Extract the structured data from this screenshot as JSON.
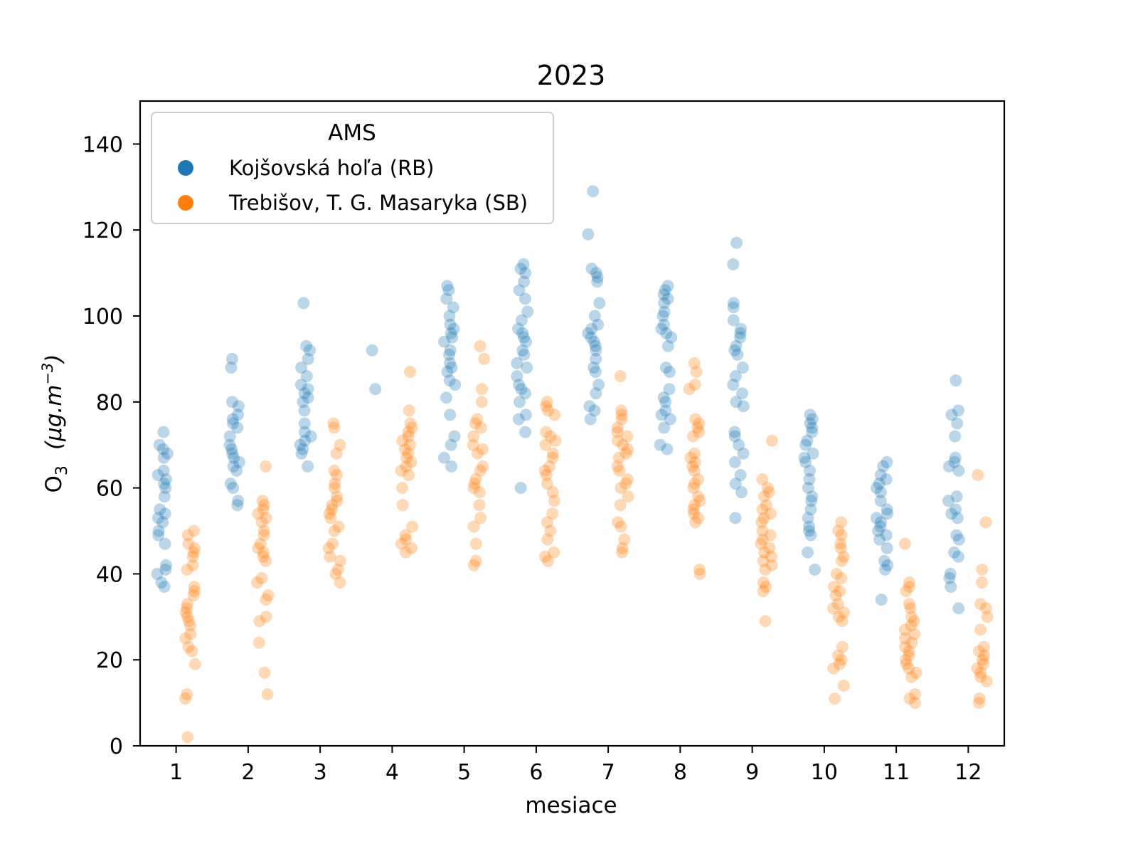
{
  "chart_data": {
    "type": "scatter",
    "title": "2023",
    "xlabel": "mesiace",
    "ylabel": "O",
    "ylabel_sub": "3",
    "ylabel_unit_main": "(μg.m",
    "ylabel_unit_exp": "−3",
    "ylabel_unit_close": ")",
    "x_ticks": [
      "1",
      "2",
      "3",
      "4",
      "5",
      "6",
      "7",
      "8",
      "9",
      "10",
      "11",
      "12"
    ],
    "y_ticks": [
      "0",
      "20",
      "40",
      "60",
      "80",
      "100",
      "120",
      "140"
    ],
    "ylim": [
      0,
      150
    ],
    "grid": false,
    "legend": {
      "title": "AMS",
      "placement": "top-left",
      "entries": [
        "Kojšovská hoľa (RB)",
        "Trebišov, T. G. Masaryka (SB)"
      ]
    },
    "series": [
      {
        "name": "Kojšovská hoľa (RB)",
        "color": "#1f77b4",
        "offset": -0.2,
        "values": [
          [
            73,
            70,
            69,
            68,
            67,
            64,
            63,
            62,
            61,
            60,
            58,
            55,
            54,
            53,
            52,
            50,
            49,
            47,
            42,
            41,
            40,
            38,
            37
          ],
          [
            90,
            88,
            80,
            79,
            77,
            76,
            75,
            74,
            72,
            70,
            69,
            68,
            67,
            66,
            65,
            64,
            61,
            60,
            57,
            56
          ],
          [
            103,
            93,
            92,
            90,
            88,
            86,
            84,
            83,
            82,
            81,
            80,
            78,
            75,
            73,
            72,
            71,
            70,
            69,
            68,
            65
          ],
          [
            92,
            83
          ],
          [
            107,
            106,
            104,
            102,
            100,
            98,
            97,
            96,
            95,
            94,
            92,
            91,
            89,
            88,
            87,
            85,
            84,
            81,
            77,
            72,
            70,
            67,
            65
          ],
          [
            112,
            111,
            110,
            108,
            106,
            104,
            101,
            99,
            97,
            96,
            95,
            94,
            92,
            91,
            89,
            88,
            86,
            84,
            83,
            82,
            80,
            77,
            76,
            73,
            60
          ],
          [
            129,
            119,
            111,
            110,
            109,
            108,
            103,
            100,
            98,
            97,
            96,
            95,
            94,
            93,
            92,
            90,
            88,
            87,
            84,
            82,
            79,
            78,
            76
          ],
          [
            107,
            106,
            105,
            104,
            103,
            101,
            100,
            98,
            97,
            96,
            95,
            93,
            88,
            87,
            83,
            81,
            80,
            78,
            77,
            76,
            74,
            70,
            69
          ],
          [
            117,
            112,
            103,
            102,
            99,
            97,
            96,
            95,
            93,
            92,
            91,
            88,
            86,
            84,
            82,
            80,
            79,
            73,
            72,
            70,
            68,
            66,
            63,
            61,
            59,
            53
          ],
          [
            77,
            76,
            75,
            74,
            73,
            71,
            70,
            68,
            67,
            66,
            64,
            62,
            60,
            58,
            57,
            55,
            53,
            51,
            50,
            49,
            45,
            41
          ],
          [
            66,
            65,
            63,
            62,
            61,
            60,
            59,
            57,
            55,
            54,
            53,
            52,
            51,
            50,
            49,
            48,
            46,
            43,
            42,
            41,
            34
          ],
          [
            85,
            78,
            77,
            75,
            72,
            67,
            66,
            65,
            64,
            58,
            57,
            55,
            54,
            53,
            49,
            48,
            45,
            44,
            40,
            39,
            37,
            32
          ]
        ]
      },
      {
        "name": "Trebišov, T. G. Masaryka (SB)",
        "color": "#ff7f0e",
        "offset": 0.2,
        "values": [
          [
            50,
            49,
            47,
            46,
            45,
            44,
            42,
            41,
            37,
            36,
            35,
            33,
            32,
            31,
            30,
            29,
            28,
            26,
            25,
            23,
            22,
            19,
            12,
            11,
            2
          ],
          [
            65,
            57,
            56,
            55,
            54,
            53,
            52,
            50,
            49,
            47,
            46,
            45,
            44,
            43,
            39,
            38,
            35,
            34,
            30,
            29,
            24,
            17,
            12
          ],
          [
            75,
            74,
            70,
            68,
            64,
            63,
            61,
            60,
            58,
            57,
            56,
            55,
            54,
            53,
            51,
            50,
            47,
            46,
            44,
            43,
            41,
            40,
            38
          ],
          [
            87,
            78,
            75,
            74,
            73,
            72,
            71,
            70,
            69,
            68,
            67,
            66,
            65,
            64,
            63,
            60,
            56,
            51,
            49,
            48,
            47,
            46,
            45
          ],
          [
            93,
            90,
            83,
            80,
            76,
            75,
            74,
            72,
            70,
            69,
            68,
            65,
            64,
            62,
            61,
            60,
            59,
            56,
            53,
            51,
            47,
            43,
            42
          ],
          [
            80,
            79,
            78,
            77,
            73,
            72,
            71,
            70,
            68,
            67,
            65,
            64,
            63,
            61,
            59,
            57,
            54,
            52,
            50,
            48,
            45,
            44,
            43
          ],
          [
            86,
            78,
            77,
            76,
            74,
            73,
            72,
            71,
            70,
            69,
            68,
            67,
            65,
            64,
            62,
            61,
            60,
            58,
            56,
            52,
            51,
            48,
            46,
            45
          ],
          [
            89,
            87,
            84,
            83,
            76,
            75,
            74,
            73,
            72,
            68,
            67,
            66,
            65,
            64,
            62,
            61,
            60,
            58,
            57,
            56,
            55,
            54,
            53,
            52,
            41,
            40
          ],
          [
            71,
            62,
            60,
            59,
            58,
            56,
            55,
            54,
            53,
            52,
            50,
            49,
            48,
            47,
            46,
            45,
            44,
            43,
            42,
            41,
            38,
            37,
            36,
            29
          ],
          [
            52,
            50,
            49,
            47,
            46,
            44,
            43,
            40,
            39,
            37,
            36,
            35,
            33,
            32,
            31,
            30,
            29,
            23,
            21,
            20,
            19,
            18,
            14,
            11
          ],
          [
            47,
            38,
            37,
            36,
            33,
            32,
            30,
            29,
            28,
            27,
            26,
            25,
            24,
            23,
            22,
            21,
            20,
            19,
            18,
            17,
            16,
            12,
            11,
            10
          ],
          [
            63,
            52,
            41,
            38,
            33,
            32,
            30,
            27,
            23,
            22,
            21,
            20,
            19,
            18,
            17,
            16,
            15,
            11,
            10
          ]
        ]
      }
    ]
  }
}
